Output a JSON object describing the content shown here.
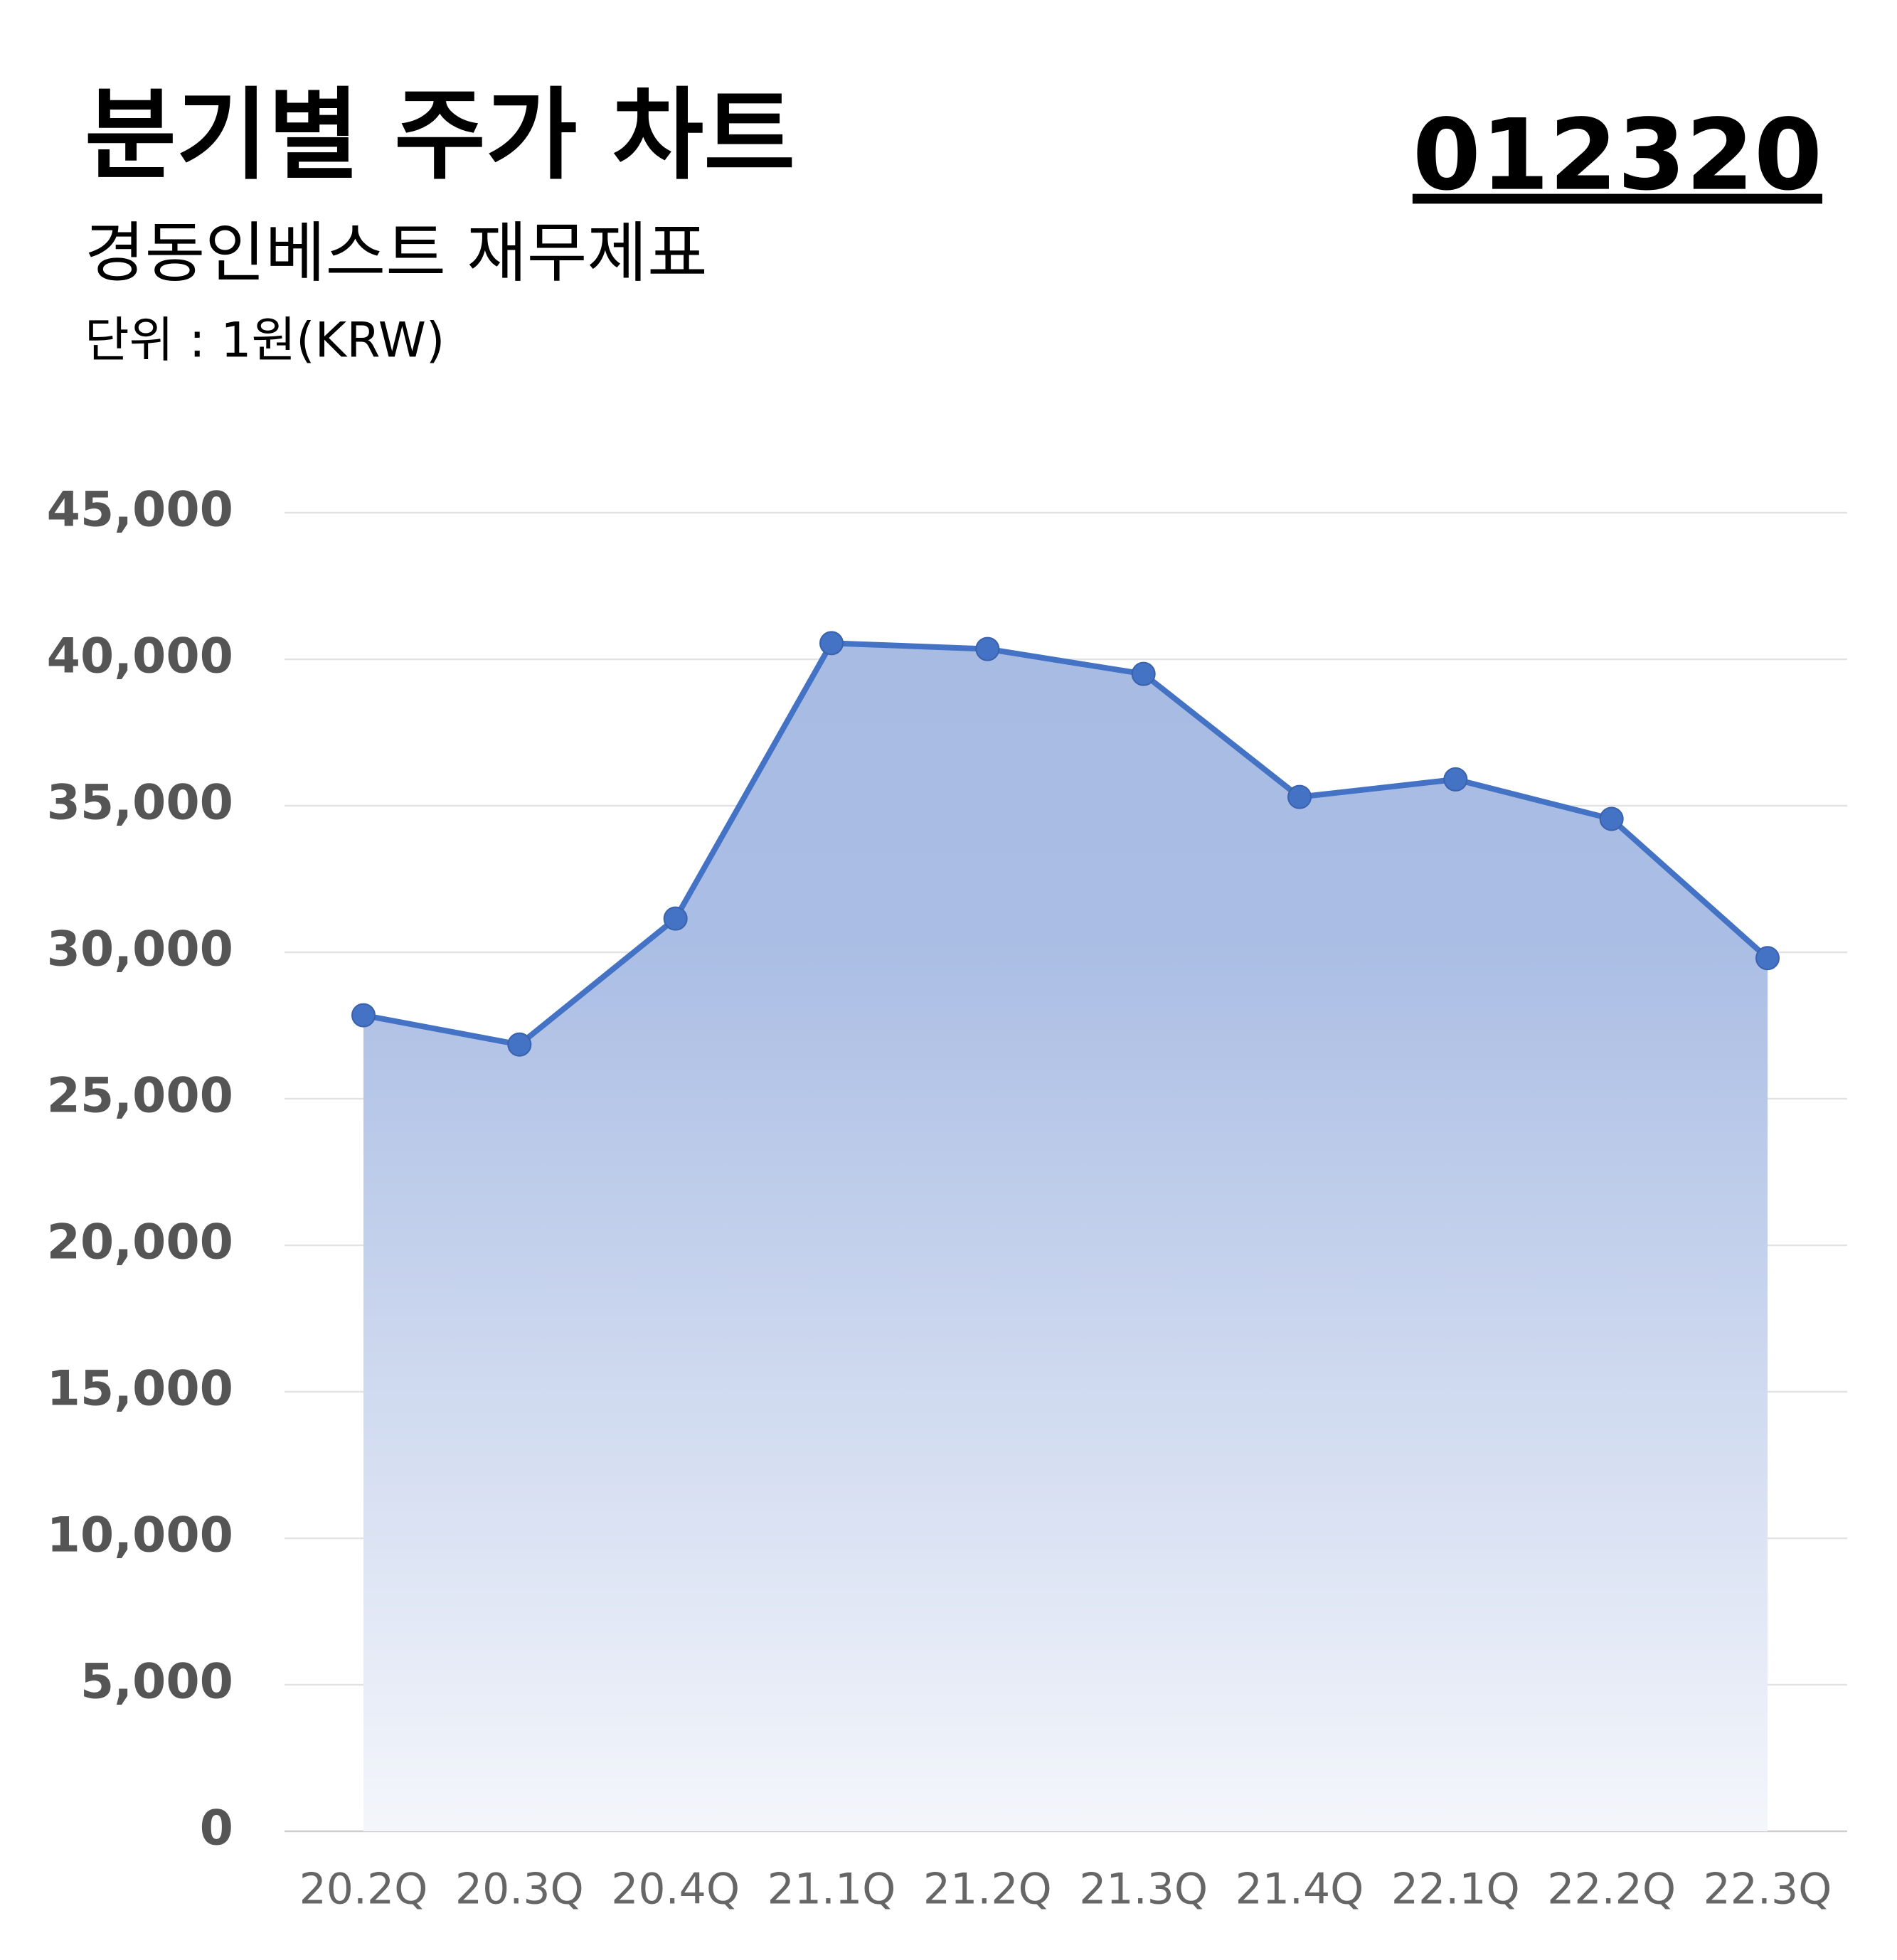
{
  "chart_data": {
    "type": "area",
    "title": "분기별 주가 차트",
    "subtitle": "경동인베스트 재무제표",
    "unit_note": "단위 : 1원(KRW)",
    "code": "012320",
    "categories": [
      "20.2Q",
      "20.3Q",
      "20.4Q",
      "21.1Q",
      "21.2Q",
      "21.3Q",
      "21.4Q",
      "22.1Q",
      "22.2Q",
      "22.3Q"
    ],
    "series": [
      {
        "name": "주가",
        "color": "#4472c4",
        "values": [
          27850,
          26850,
          31150,
          40550,
          40350,
          39500,
          35300,
          35900,
          34550,
          29800
        ]
      }
    ],
    "ylim": [
      0,
      45000
    ],
    "yticks": [
      0,
      {
        "value": 5000,
        "label": "5,000"
      },
      {
        "value": 10000,
        "label": "10,000"
      },
      {
        "value": 15000,
        "label": "15,000"
      },
      {
        "value": 20000,
        "label": "20,000"
      },
      {
        "value": 25000,
        "label": "25,000"
      },
      {
        "value": 30000,
        "label": "30,000"
      },
      {
        "value": 35000,
        "label": "35,000"
      },
      {
        "value": 40000,
        "label": "40,000"
      },
      {
        "value": 45000,
        "label": "45,000"
      }
    ],
    "grid": true
  }
}
